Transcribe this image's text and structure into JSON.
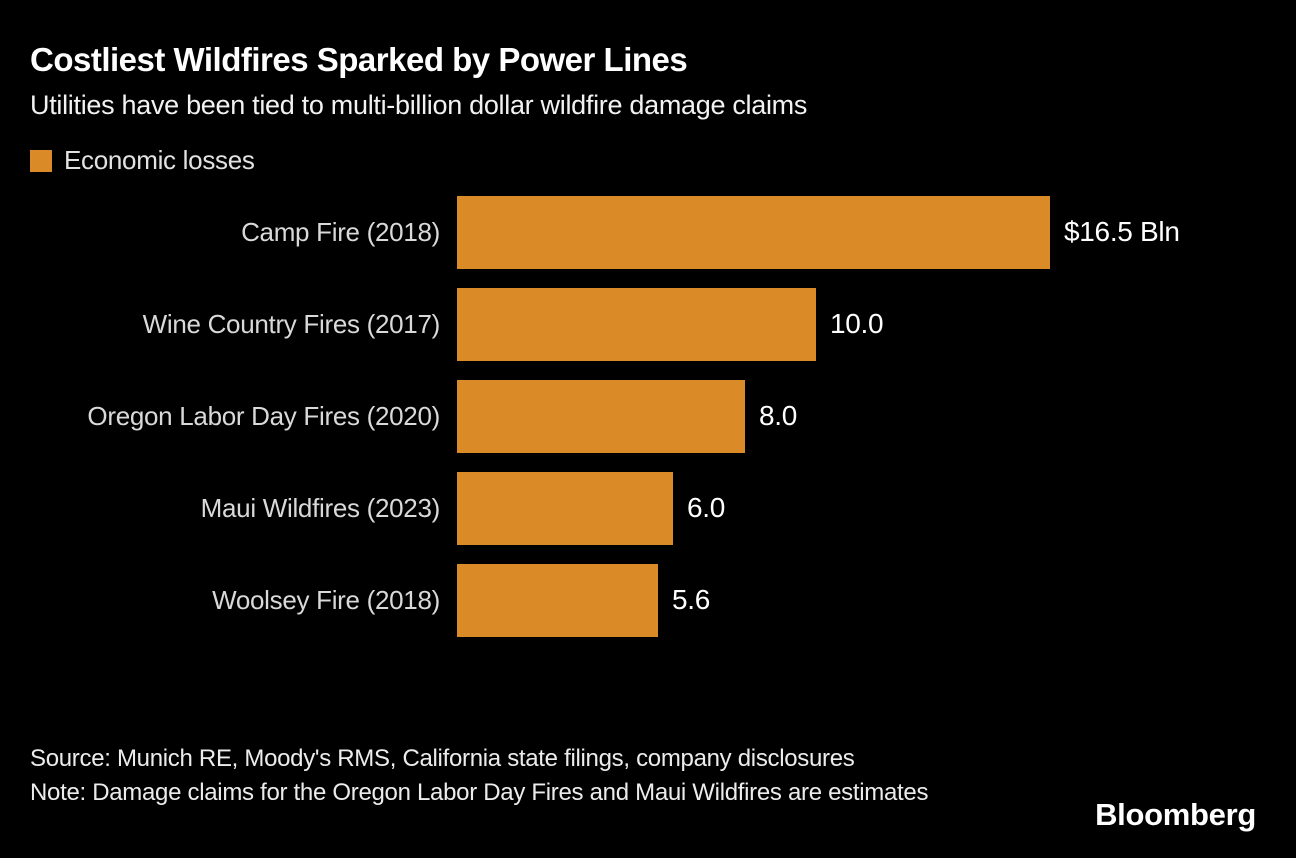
{
  "header": {
    "title": "Costliest Wildfires Sparked by Power Lines",
    "subtitle": "Utilities have been tied to multi-billion dollar wildfire damage claims"
  },
  "legend": {
    "label": "Economic losses",
    "swatch_color": "#DB8A28"
  },
  "chart_data": {
    "type": "bar",
    "orientation": "horizontal",
    "title": "Costliest Wildfires Sparked by Power Lines",
    "subtitle": "Utilities have been tied to multi-billion dollar wildfire damage claims",
    "legend_entries": [
      "Economic losses"
    ],
    "legend_position": "top-left",
    "unit": "$ Bln",
    "categories": [
      "Camp Fire (2018)",
      "Wine Country Fires (2017)",
      "Oregon Labor Day Fires (2020)",
      "Maui Wildfires (2023)",
      "Woolsey Fire (2018)"
    ],
    "values": [
      16.5,
      10.0,
      8.0,
      6.0,
      5.6
    ],
    "value_labels": [
      "$16.5 Bln",
      "10.0",
      "8.0",
      "6.0",
      "5.6"
    ],
    "xlim": [
      0,
      16.5
    ],
    "grid": false,
    "bar_color": "#DB8A28",
    "background_color": "#000000"
  },
  "footer": {
    "source": "Source: Munich RE, Moody's RMS, California state filings, company disclosures",
    "note": "Note: Damage claims for the Oregon Labor Day Fires and Maui Wildfires are estimates",
    "logo": "Bloomberg"
  }
}
